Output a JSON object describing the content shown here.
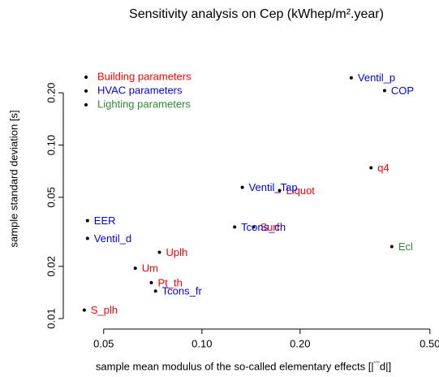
{
  "chart_data": {
    "type": "scatter",
    "title": "Sensitivity analysis on Cep (kWhep/m².year)",
    "xlabel": "sample mean modulus of the so-called elementary effects [|¯d|]",
    "ylabel": "sample standard deviation [s]",
    "xlog": true,
    "ylog": true,
    "legend": "topleft",
    "marker_color": "#000000",
    "xlim": [
      0.0376,
      0.53
    ],
    "ylim": [
      0.0087,
      0.46
    ],
    "xticks": [
      0.05,
      {
        "value": 0.1,
        "label": "0.10"
      },
      {
        "value": 0.2,
        "label": "0.20"
      },
      {
        "value": 0.5,
        "label": "0.50"
      }
    ],
    "yticks": [
      0.01,
      0.02,
      0.05,
      {
        "value": 0.1,
        "label": "0.10"
      },
      {
        "value": 0.2,
        "label": "0.20"
      }
    ],
    "series": [
      {
        "name": "Building parameters",
        "color": "#ff0000",
        "labels": [
          "q4",
          "Liquot",
          "Surf",
          "Uplh",
          "Um",
          "Pt_th",
          "S_plh"
        ],
        "x": [
          0.33,
          0.173,
          0.144,
          0.0741,
          0.0625,
          0.07,
          0.0436
        ],
        "values": [
          0.074,
          0.0547,
          0.0337,
          0.0241,
          0.0195,
          0.0161,
          0.0112
        ]
      },
      {
        "name": "HVAC parameters",
        "color": "#0000ee",
        "labels": [
          "Ventil_p",
          "COP",
          "Ventil_Tap",
          "Tcons_ch",
          "EER",
          "Ventil_d",
          "Tcons_fr"
        ],
        "x": [
          0.287,
          0.363,
          0.133,
          0.126,
          0.0446,
          0.0446,
          0.0721
        ],
        "values": [
          0.244,
          0.206,
          0.057,
          0.0337,
          0.0367,
          0.029,
          0.0144
        ]
      },
      {
        "name": "Lighting parameters",
        "color": "#2e8b2e",
        "labels": [
          "Ecl"
        ],
        "x": [
          0.382
        ],
        "values": [
          0.026
        ]
      }
    ]
  }
}
